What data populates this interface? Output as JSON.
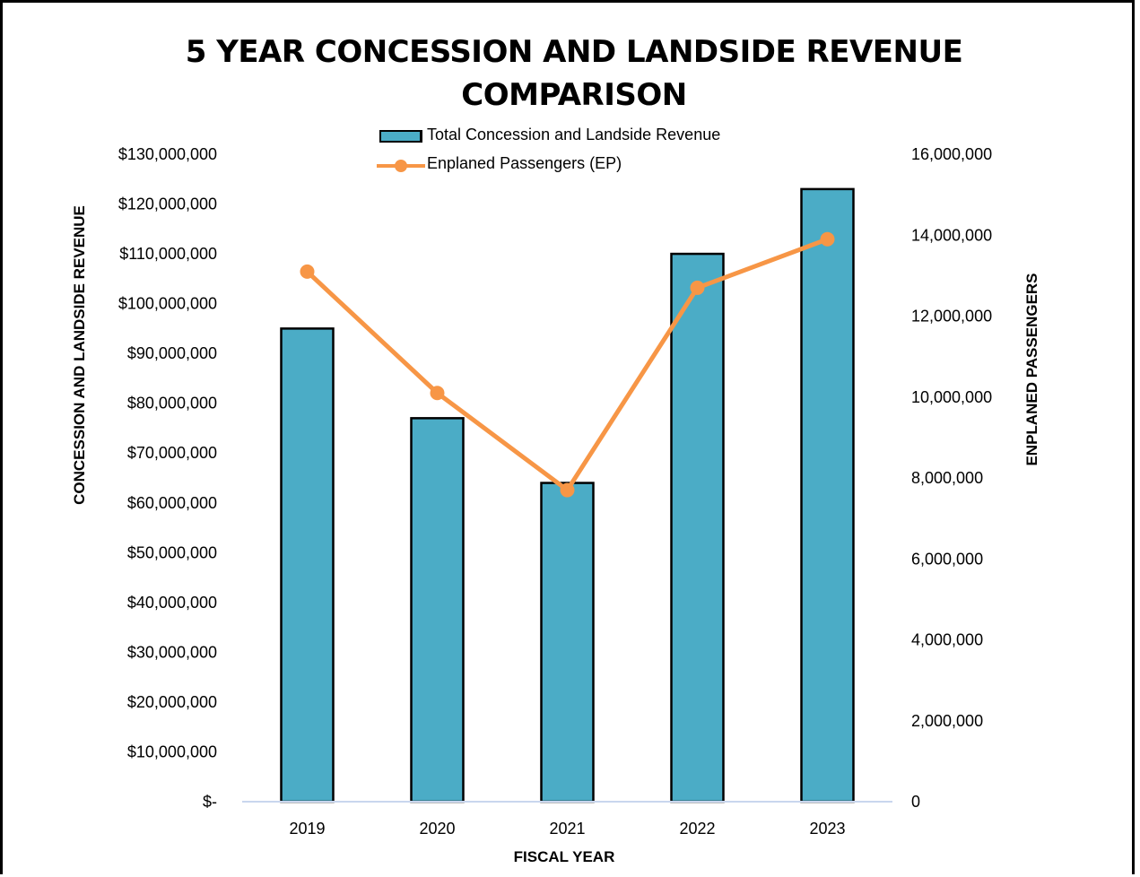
{
  "chart_data": {
    "type": "bar",
    "title_line1": "5 YEAR CONCESSION AND LANDSIDE REVENUE",
    "title_line2": "COMPARISON",
    "xlabel": "FISCAL YEAR",
    "ylabel": "CONCESSION AND LANDSIDE REVENUE",
    "y2label": "ENPLANED PASSENGERS",
    "categories": [
      "2019",
      "2020",
      "2021",
      "2022",
      "2023"
    ],
    "ylim": [
      0,
      130000000
    ],
    "y2lim": [
      0,
      16000000
    ],
    "y_ticks": [
      {
        "value": 0,
        "label": "$-"
      },
      {
        "value": 10000000,
        "label": "$10,000,000"
      },
      {
        "value": 20000000,
        "label": "$20,000,000"
      },
      {
        "value": 30000000,
        "label": "$30,000,000"
      },
      {
        "value": 40000000,
        "label": "$40,000,000"
      },
      {
        "value": 50000000,
        "label": "$50,000,000"
      },
      {
        "value": 60000000,
        "label": "$60,000,000"
      },
      {
        "value": 70000000,
        "label": "$70,000,000"
      },
      {
        "value": 80000000,
        "label": "$80,000,000"
      },
      {
        "value": 90000000,
        "label": "$90,000,000"
      },
      {
        "value": 100000000,
        "label": "$100,000,000"
      },
      {
        "value": 110000000,
        "label": "$110,000,000"
      },
      {
        "value": 120000000,
        "label": "$120,000,000"
      },
      {
        "value": 130000000,
        "label": "$130,000,000"
      }
    ],
    "y2_ticks": [
      {
        "value": 0,
        "label": "0"
      },
      {
        "value": 2000000,
        "label": "2,000,000"
      },
      {
        "value": 4000000,
        "label": "4,000,000"
      },
      {
        "value": 6000000,
        "label": "6,000,000"
      },
      {
        "value": 8000000,
        "label": "8,000,000"
      },
      {
        "value": 10000000,
        "label": "10,000,000"
      },
      {
        "value": 12000000,
        "label": "12,000,000"
      },
      {
        "value": 14000000,
        "label": "14,000,000"
      },
      {
        "value": 16000000,
        "label": "16,000,000"
      }
    ],
    "series": [
      {
        "name": "Total Concession and Landside Revenue",
        "type": "bar",
        "axis": "left",
        "color": "#4bacc6",
        "values": [
          95000000,
          77000000,
          64000000,
          110000000,
          123000000
        ]
      },
      {
        "name": "Enplaned Passengers  (EP)",
        "type": "line",
        "axis": "right",
        "color": "#f79646",
        "values": [
          13100000,
          10100000,
          7700000,
          12700000,
          13900000
        ]
      }
    ],
    "legend_position": "top-center",
    "grid": false
  }
}
